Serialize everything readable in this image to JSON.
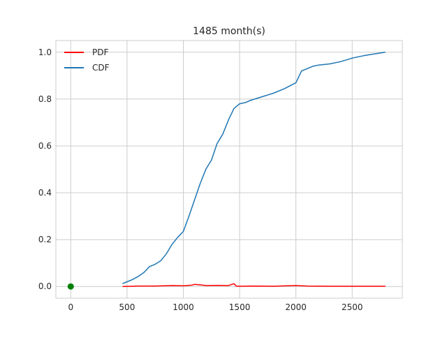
{
  "chart_data": {
    "type": "line",
    "title": "1485 month(s)",
    "xlabel": "",
    "ylabel": "",
    "xlim": [
      -132,
      2945
    ],
    "ylim": [
      -0.05,
      1.05
    ],
    "grid": true,
    "legend_position": "top-left",
    "x_ticks": [
      0,
      500,
      1000,
      1500,
      2000,
      2500
    ],
    "y_ticks": [
      0.0,
      0.2,
      0.4,
      0.6,
      0.8,
      1.0
    ],
    "x_tick_labels": [
      "0",
      "500",
      "1000",
      "1500",
      "2000",
      "2500"
    ],
    "y_tick_labels": [
      "0.0",
      "0.2",
      "0.4",
      "0.6",
      "0.8",
      "1.0"
    ],
    "series": [
      {
        "name": "PDF",
        "color": "#ff0000",
        "x": [
          460,
          600,
          750,
          900,
          1000,
          1080,
          1100,
          1150,
          1200,
          1300,
          1400,
          1450,
          1470,
          1500,
          1600,
          1800,
          2000,
          2100,
          2300,
          2500,
          2795
        ],
        "y": [
          0.0,
          0.002,
          0.002,
          0.004,
          0.003,
          0.006,
          0.009,
          0.007,
          0.004,
          0.005,
          0.004,
          0.012,
          0.002,
          0.001,
          0.002,
          0.001,
          0.004,
          0.002,
          0.001,
          0.001,
          0.001
        ]
      },
      {
        "name": "CDF",
        "color": "#1f77b4",
        "x": [
          460,
          500,
          550,
          600,
          650,
          700,
          750,
          800,
          850,
          900,
          950,
          1000,
          1050,
          1100,
          1150,
          1200,
          1250,
          1300,
          1350,
          1400,
          1450,
          1500,
          1550,
          1600,
          1700,
          1800,
          1900,
          2000,
          2050,
          2100,
          2150,
          2200,
          2300,
          2400,
          2500,
          2600,
          2700,
          2795
        ],
        "y": [
          0.012,
          0.02,
          0.03,
          0.043,
          0.06,
          0.085,
          0.095,
          0.11,
          0.14,
          0.18,
          0.21,
          0.235,
          0.3,
          0.37,
          0.44,
          0.5,
          0.54,
          0.61,
          0.65,
          0.71,
          0.76,
          0.78,
          0.785,
          0.795,
          0.81,
          0.825,
          0.845,
          0.87,
          0.92,
          0.93,
          0.94,
          0.945,
          0.95,
          0.96,
          0.975,
          0.985,
          0.993,
          1.0
        ]
      }
    ],
    "markers": [
      {
        "name": "origin-point",
        "x": 0,
        "y": 0.0,
        "color": "#008000"
      }
    ]
  },
  "colors": {
    "grid": "#cccccc",
    "axis_border": "#cccccc",
    "text": "#262626"
  }
}
